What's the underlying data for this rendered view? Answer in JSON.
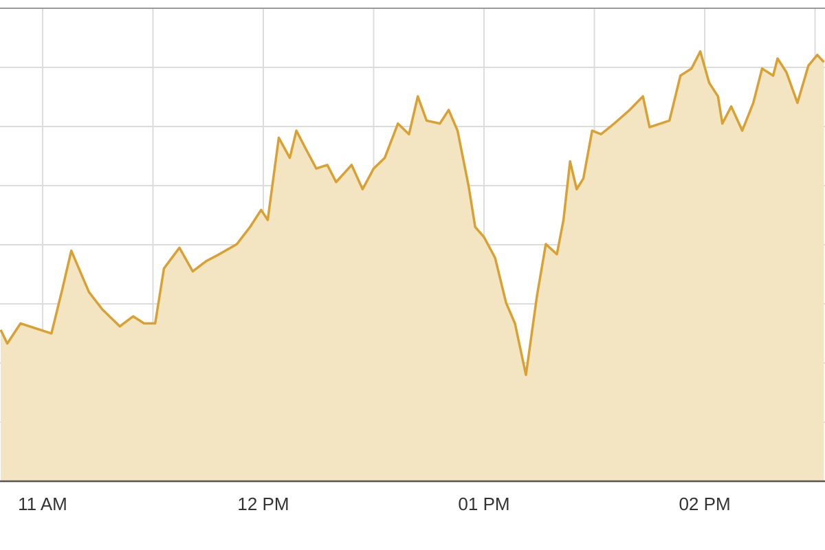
{
  "chart_data": {
    "type": "area",
    "x": [
      10.81,
      10.84,
      10.9,
      10.99,
      11.04,
      11.09,
      11.13,
      11.17,
      11.21,
      11.27,
      11.35,
      11.41,
      11.46,
      11.51,
      11.55,
      11.62,
      11.68,
      11.74,
      11.8,
      11.88,
      11.94,
      11.99,
      12.02,
      12.07,
      12.12,
      12.15,
      12.19,
      12.24,
      12.29,
      12.33,
      12.4,
      12.45,
      12.5,
      12.55,
      12.61,
      12.66,
      12.7,
      12.74,
      12.8,
      12.84,
      12.88,
      12.93,
      12.96,
      13.0,
      13.05,
      13.1,
      13.14,
      13.19,
      13.24,
      13.28,
      13.33,
      13.36,
      13.39,
      13.42,
      13.45,
      13.49,
      13.53,
      13.59,
      13.66,
      13.72,
      13.75,
      13.8,
      13.84,
      13.89,
      13.94,
      13.98,
      14.02,
      14.06,
      14.08,
      14.12,
      14.17,
      14.22,
      14.26,
      14.31,
      14.33,
      14.37,
      14.42,
      14.47,
      14.51,
      14.54
    ],
    "series": [
      {
        "color": "#d9a032",
        "fill": "#f3e4c2",
        "values": [
          2.56,
          2.33,
          2.67,
          2.56,
          2.5,
          3.26,
          3.9,
          3.55,
          3.2,
          2.91,
          2.62,
          2.79,
          2.67,
          2.67,
          3.6,
          3.95,
          3.55,
          3.72,
          3.84,
          4.01,
          4.3,
          4.59,
          4.42,
          5.81,
          5.47,
          5.93,
          5.64,
          5.29,
          5.35,
          5.06,
          5.35,
          4.94,
          5.29,
          5.47,
          6.05,
          5.87,
          6.51,
          6.1,
          6.05,
          6.28,
          5.93,
          5.0,
          4.3,
          4.13,
          3.78,
          3.02,
          2.67,
          1.8,
          3.14,
          4.01,
          3.84,
          4.42,
          5.41,
          4.94,
          5.12,
          5.93,
          5.87,
          6.05,
          6.28,
          6.51,
          5.99,
          6.05,
          6.1,
          6.86,
          6.98,
          7.27,
          6.74,
          6.51,
          6.05,
          6.34,
          5.93,
          6.4,
          6.98,
          6.86,
          7.15,
          6.92,
          6.4,
          7.03,
          7.21,
          7.09
        ]
      }
    ],
    "xlim": [
      10.807,
      14.545
    ],
    "xticks": [
      {
        "value": 11,
        "label": "11 AM"
      },
      {
        "value": 12,
        "label": "12 PM"
      },
      {
        "value": 13,
        "label": "01 PM"
      },
      {
        "value": 14,
        "label": "02 PM"
      }
    ],
    "xminor": [
      11.5,
      12.5,
      13.5,
      14.5
    ],
    "ylim": [
      0,
      8
    ],
    "yticks": [
      1,
      2,
      3,
      4,
      5,
      6,
      7
    ],
    "grid": true
  }
}
